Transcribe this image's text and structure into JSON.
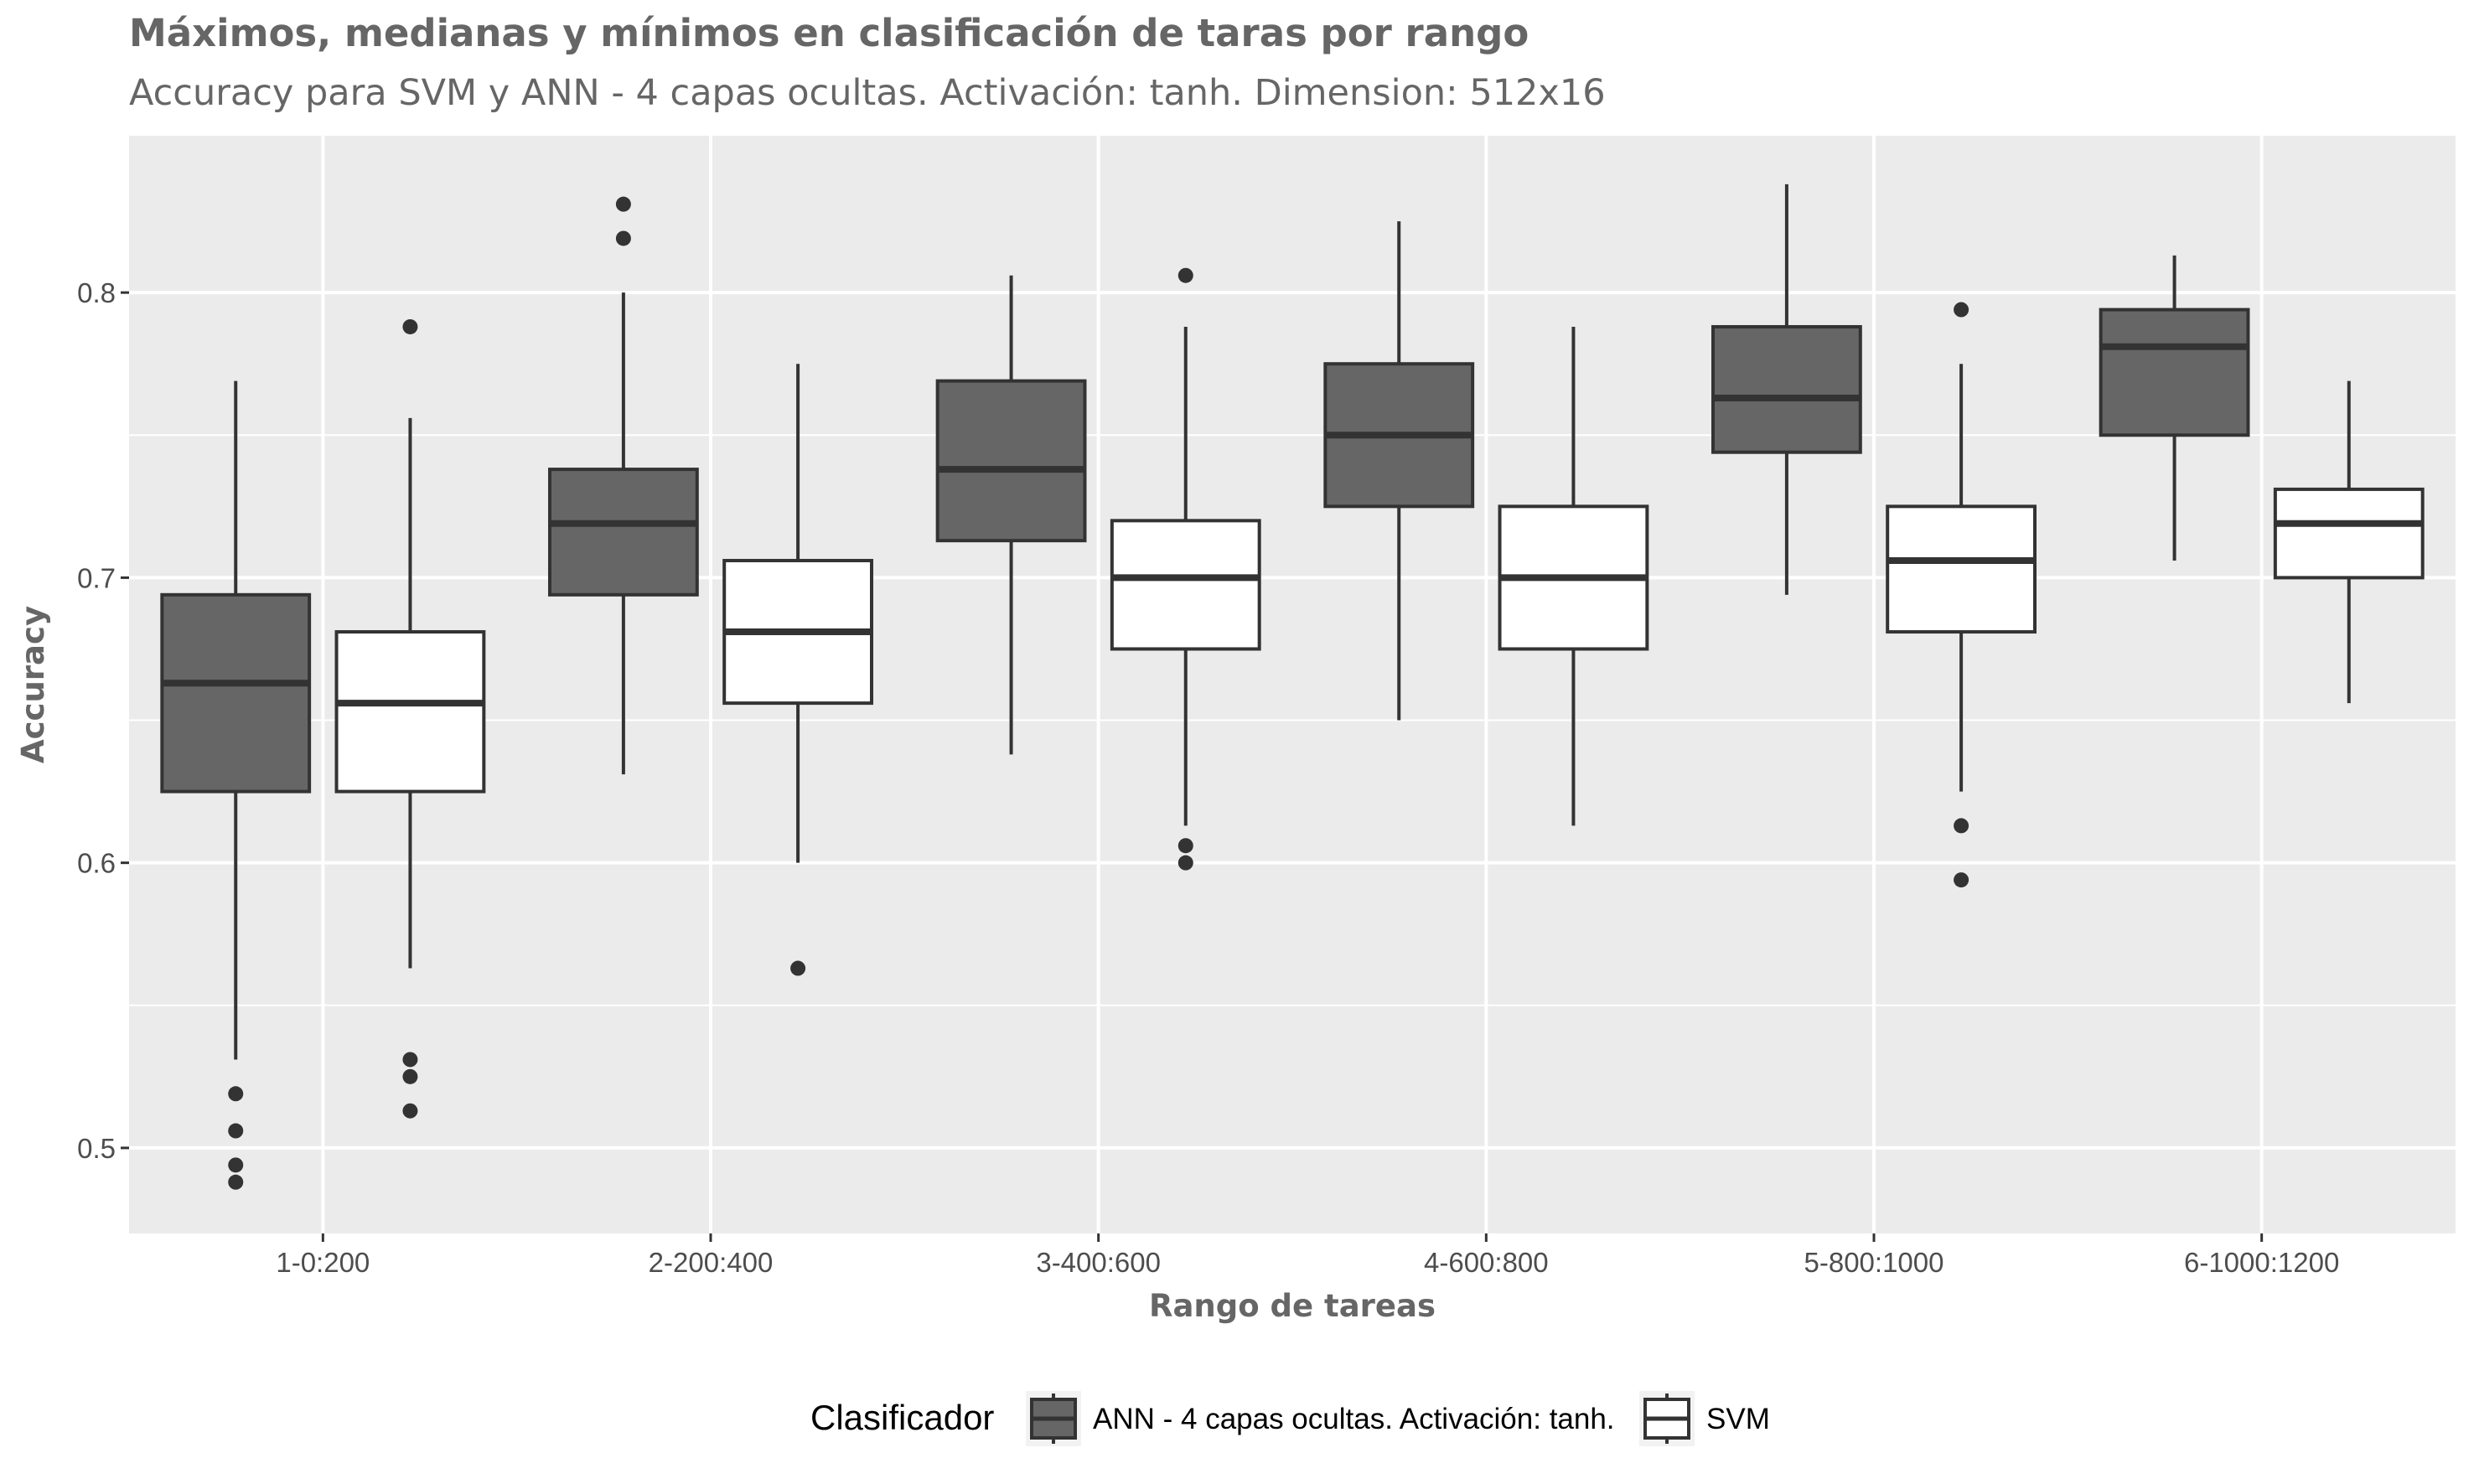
{
  "chart_data": {
    "type": "boxplot",
    "title": "Máximos, medianas y mínimos en clasificación de taras por rango",
    "subtitle": "Accuracy para SVM y  ANN - 4 capas ocultas. Activación: tanh. Dimension: 512x16",
    "xlabel": "Rango de tareas",
    "ylabel": "Accuracy",
    "ylim": [
      0.47,
      0.855
    ],
    "yticks": [
      0.5,
      0.6,
      0.7,
      0.8
    ],
    "ytick_labels": [
      "0.5",
      "0.6",
      "0.7",
      "0.8"
    ],
    "categories": [
      "1-0:200",
      "2-200:400",
      "3-400:600",
      "4-600:800",
      "5-800:1000",
      "6-1000:1200"
    ],
    "legend": {
      "title": "Clasificador",
      "position": "bottom"
    },
    "series": [
      {
        "name": "ANN - 4 capas ocultas. Activación: tanh.",
        "fill": "#666666",
        "boxes": [
          {
            "whisker_low": 0.531,
            "q1": 0.625,
            "median": 0.663,
            "q3": 0.694,
            "whisker_high": 0.769,
            "outliers": [
              0.519,
              0.506,
              0.494,
              0.488
            ]
          },
          {
            "whisker_low": 0.631,
            "q1": 0.694,
            "median": 0.719,
            "q3": 0.738,
            "whisker_high": 0.8,
            "outliers": [
              0.831,
              0.819
            ]
          },
          {
            "whisker_low": 0.638,
            "q1": 0.713,
            "median": 0.738,
            "q3": 0.769,
            "whisker_high": 0.806,
            "outliers": []
          },
          {
            "whisker_low": 0.65,
            "q1": 0.725,
            "median": 0.75,
            "q3": 0.775,
            "whisker_high": 0.825,
            "outliers": []
          },
          {
            "whisker_low": 0.694,
            "q1": 0.744,
            "median": 0.763,
            "q3": 0.788,
            "whisker_high": 0.838,
            "outliers": []
          },
          {
            "whisker_low": 0.706,
            "q1": 0.75,
            "median": 0.781,
            "q3": 0.794,
            "whisker_high": 0.813,
            "outliers": []
          }
        ]
      },
      {
        "name": "SVM",
        "fill": "#ffffff",
        "boxes": [
          {
            "whisker_low": 0.563,
            "q1": 0.625,
            "median": 0.656,
            "q3": 0.681,
            "whisker_high": 0.756,
            "outliers": [
              0.788,
              0.531,
              0.525,
              0.513
            ]
          },
          {
            "whisker_low": 0.6,
            "q1": 0.656,
            "median": 0.681,
            "q3": 0.706,
            "whisker_high": 0.775,
            "outliers": [
              0.563
            ]
          },
          {
            "whisker_low": 0.613,
            "q1": 0.675,
            "median": 0.7,
            "q3": 0.72,
            "whisker_high": 0.788,
            "outliers": [
              0.806,
              0.606,
              0.6
            ]
          },
          {
            "whisker_low": 0.613,
            "q1": 0.675,
            "median": 0.7,
            "q3": 0.725,
            "whisker_high": 0.788,
            "outliers": []
          },
          {
            "whisker_low": 0.625,
            "q1": 0.681,
            "median": 0.706,
            "q3": 0.725,
            "whisker_high": 0.775,
            "outliers": [
              0.794,
              0.613,
              0.594
            ]
          },
          {
            "whisker_low": 0.656,
            "q1": 0.7,
            "median": 0.719,
            "q3": 0.731,
            "whisker_high": 0.769,
            "outliers": []
          }
        ]
      }
    ]
  }
}
